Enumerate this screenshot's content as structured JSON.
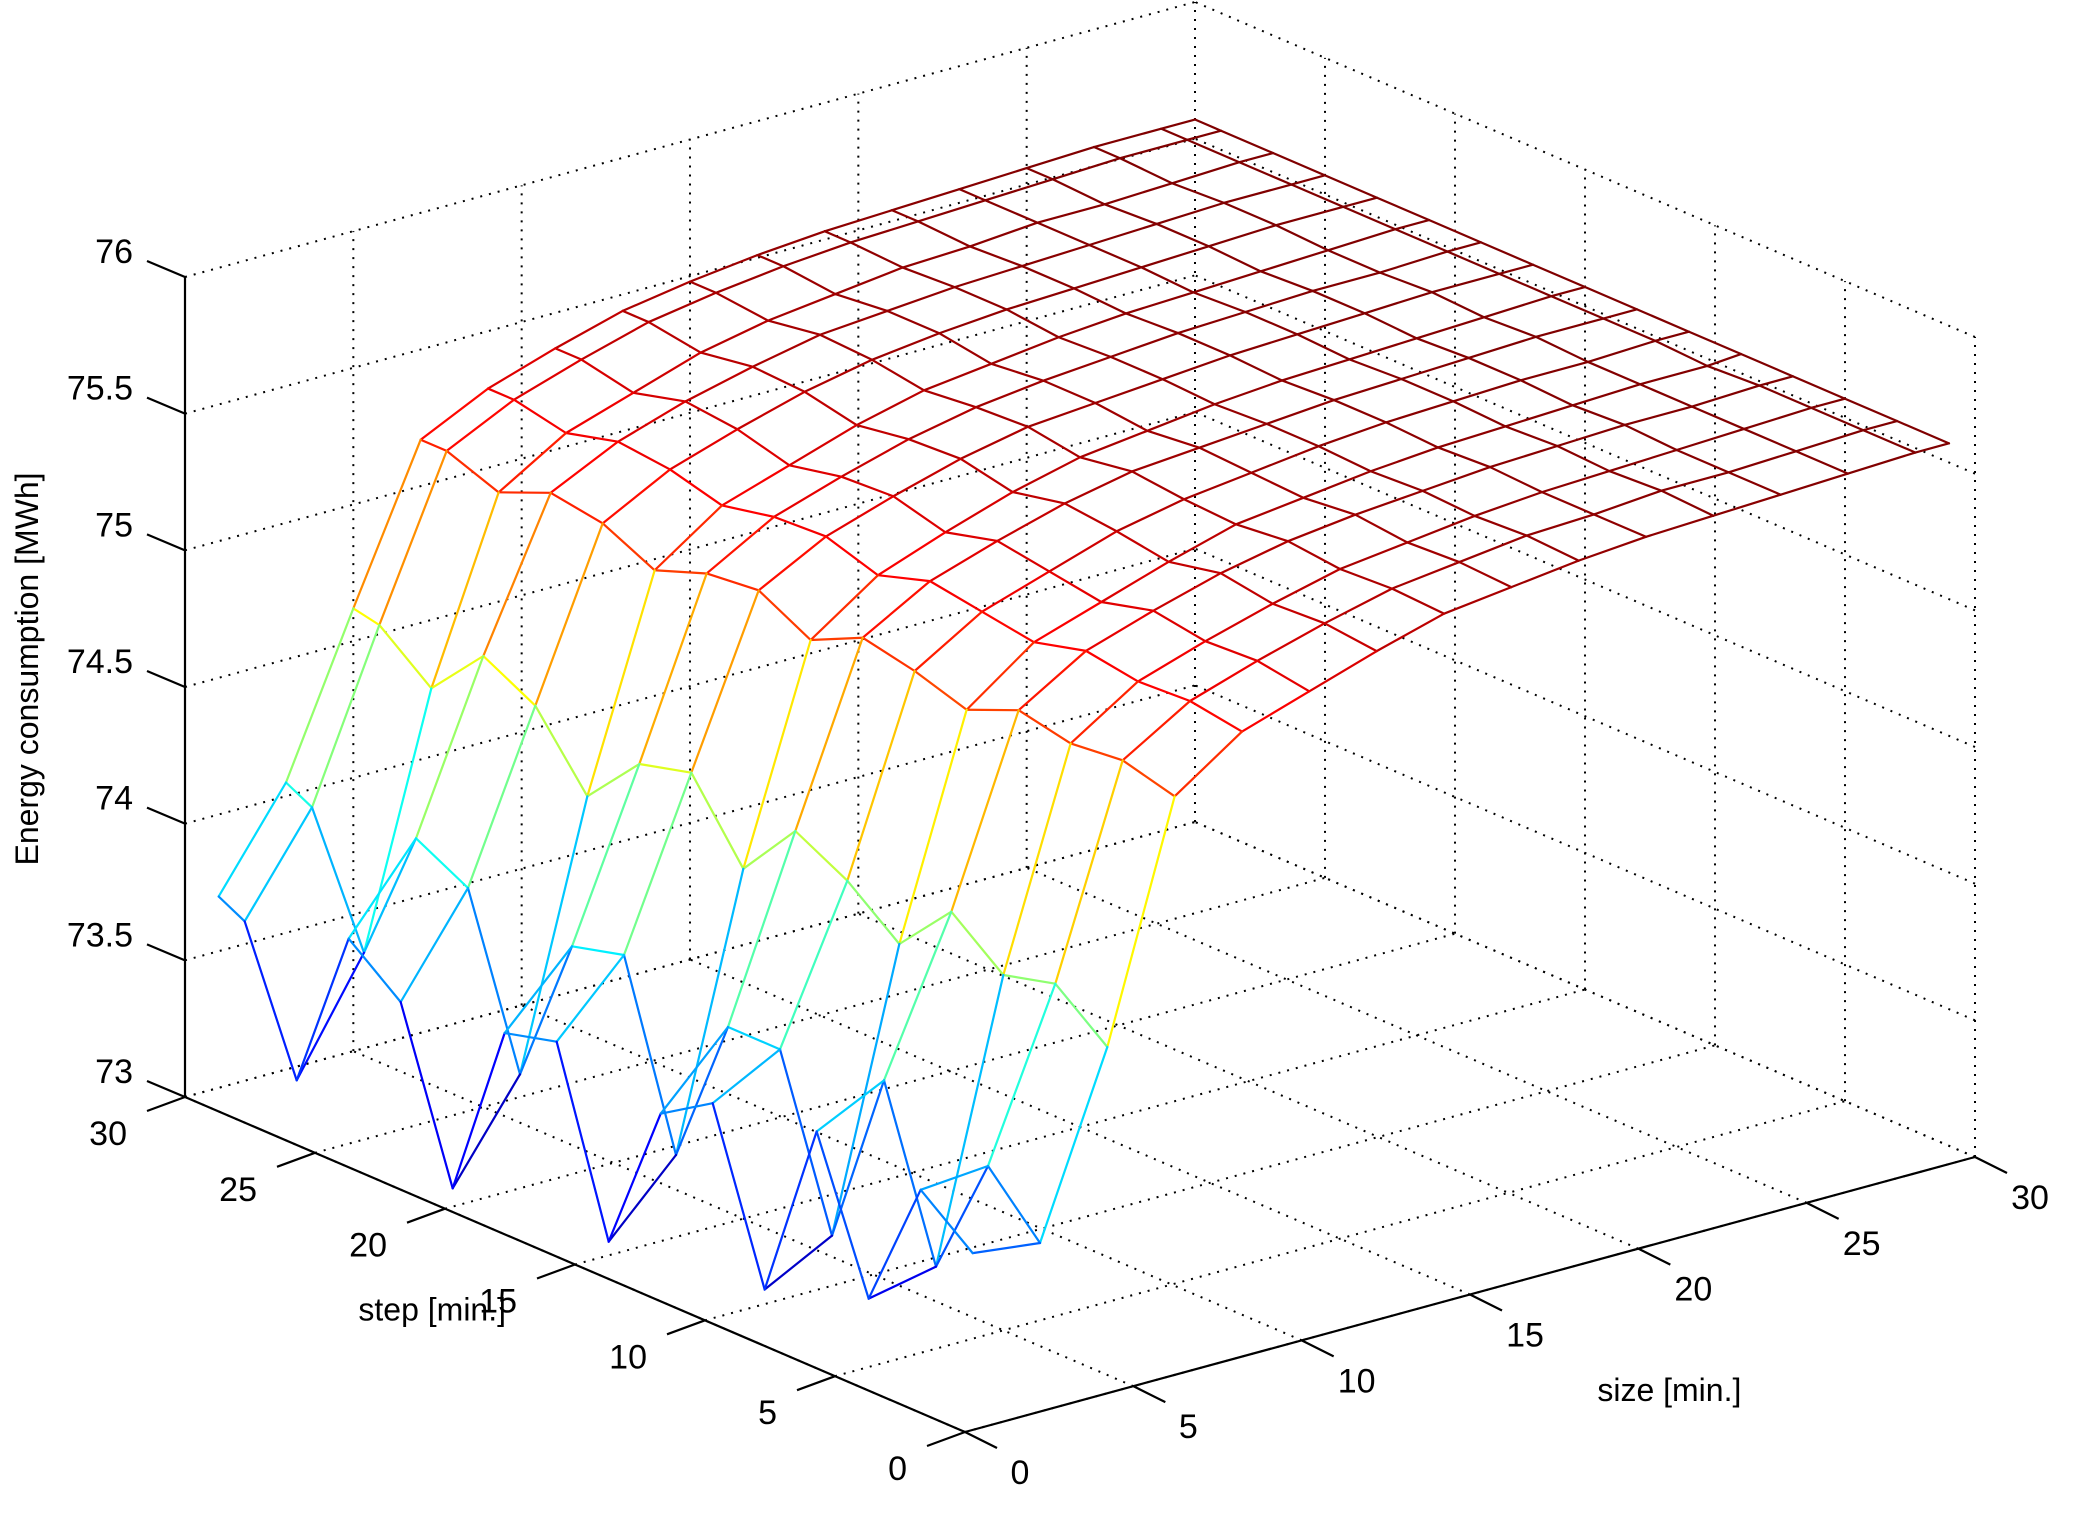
{
  "chart_data": {
    "type": "surface",
    "xlabel": "size [min.]",
    "ylabel": "step [min.]",
    "zlabel": "Energy consumption [MWh]",
    "xlim": [
      0,
      30
    ],
    "ylim": [
      0,
      30
    ],
    "zlim": [
      73,
      76
    ],
    "x_ticks": [
      0,
      5,
      10,
      15,
      20,
      25,
      30
    ],
    "y_ticks": [
      0,
      5,
      10,
      15,
      20,
      25,
      30
    ],
    "z_ticks": [
      73,
      73.5,
      74,
      74.5,
      75,
      75.5,
      76
    ],
    "grid": true,
    "mesh": {
      "x_values": [
        1,
        3,
        5,
        7,
        9,
        11,
        13,
        15,
        17,
        19,
        21,
        23,
        25,
        27,
        29,
        30
      ],
      "y_values": [
        1,
        3,
        5,
        7,
        9,
        11,
        13,
        15,
        17,
        19,
        21,
        23,
        25,
        27,
        29,
        30
      ],
      "z_values": [
        [
          73.58,
          73.55,
          74.2,
          75.05,
          75.22,
          75.3,
          75.38,
          75.45,
          75.48,
          75.51,
          75.53,
          75.54,
          75.55,
          75.56,
          75.57,
          75.57
        ],
        [
          73.73,
          73.75,
          74.35,
          75.1,
          75.25,
          75.33,
          75.4,
          75.46,
          75.49,
          75.52,
          75.53,
          75.55,
          75.55,
          75.56,
          75.57,
          75.57
        ],
        [
          73.25,
          73.3,
          74.3,
          75.08,
          75.24,
          75.32,
          75.39,
          75.45,
          75.48,
          75.51,
          75.53,
          75.54,
          75.55,
          75.56,
          75.57,
          75.57
        ],
        [
          73.78,
          73.9,
          74.45,
          75.12,
          75.27,
          75.35,
          75.42,
          75.47,
          75.5,
          75.52,
          75.54,
          75.55,
          75.56,
          75.56,
          75.57,
          75.57
        ],
        [
          73.12,
          73.25,
          74.25,
          75.04,
          75.22,
          75.3,
          75.38,
          75.45,
          75.48,
          75.51,
          75.53,
          75.54,
          75.55,
          75.56,
          75.56,
          75.57
        ],
        [
          73.72,
          73.85,
          74.4,
          75.1,
          75.25,
          75.33,
          75.41,
          75.46,
          75.49,
          75.52,
          75.54,
          75.55,
          75.56,
          75.56,
          75.57,
          75.57
        ],
        [
          73.6,
          73.85,
          74.5,
          75.14,
          75.28,
          75.36,
          75.43,
          75.48,
          75.5,
          75.52,
          75.54,
          75.55,
          75.56,
          75.57,
          75.57,
          75.57
        ],
        [
          73.05,
          73.3,
          74.28,
          75.05,
          75.22,
          75.31,
          75.39,
          75.45,
          75.48,
          75.51,
          75.53,
          75.54,
          75.55,
          75.56,
          75.57,
          75.57
        ],
        [
          73.7,
          73.95,
          74.55,
          75.15,
          75.28,
          75.36,
          75.43,
          75.48,
          75.5,
          75.52,
          75.54,
          75.55,
          75.56,
          75.57,
          75.57,
          75.57
        ],
        [
          73.65,
          73.9,
          74.5,
          75.13,
          75.27,
          75.35,
          75.42,
          75.47,
          75.5,
          75.52,
          75.54,
          75.55,
          75.56,
          75.56,
          75.57,
          75.57
        ],
        [
          73.0,
          73.35,
          74.3,
          75.06,
          75.23,
          75.31,
          75.39,
          75.45,
          75.48,
          75.51,
          75.53,
          75.54,
          75.55,
          75.56,
          75.57,
          75.57
        ],
        [
          73.6,
          73.95,
          74.55,
          75.15,
          75.28,
          75.36,
          75.43,
          75.48,
          75.51,
          75.53,
          75.54,
          75.55,
          75.56,
          75.57,
          75.57,
          75.57
        ],
        [
          73.75,
          74.05,
          74.65,
          75.18,
          75.3,
          75.38,
          75.44,
          75.49,
          75.51,
          75.53,
          75.54,
          75.55,
          75.56,
          75.57,
          75.57,
          75.57
        ],
        [
          73.15,
          73.55,
          74.45,
          75.1,
          75.25,
          75.33,
          75.41,
          75.46,
          75.49,
          75.52,
          75.53,
          75.55,
          75.55,
          75.56,
          75.57,
          75.57
        ],
        [
          73.65,
          74.0,
          74.6,
          75.17,
          75.29,
          75.37,
          75.44,
          75.48,
          75.51,
          75.53,
          75.54,
          75.55,
          75.56,
          75.57,
          75.57,
          75.57
        ],
        [
          73.7,
          74.05,
          74.62,
          75.17,
          75.29,
          75.37,
          75.44,
          75.48,
          75.51,
          75.53,
          75.54,
          75.55,
          75.56,
          75.57,
          75.57,
          75.57
        ]
      ]
    },
    "colormap": "jet"
  }
}
